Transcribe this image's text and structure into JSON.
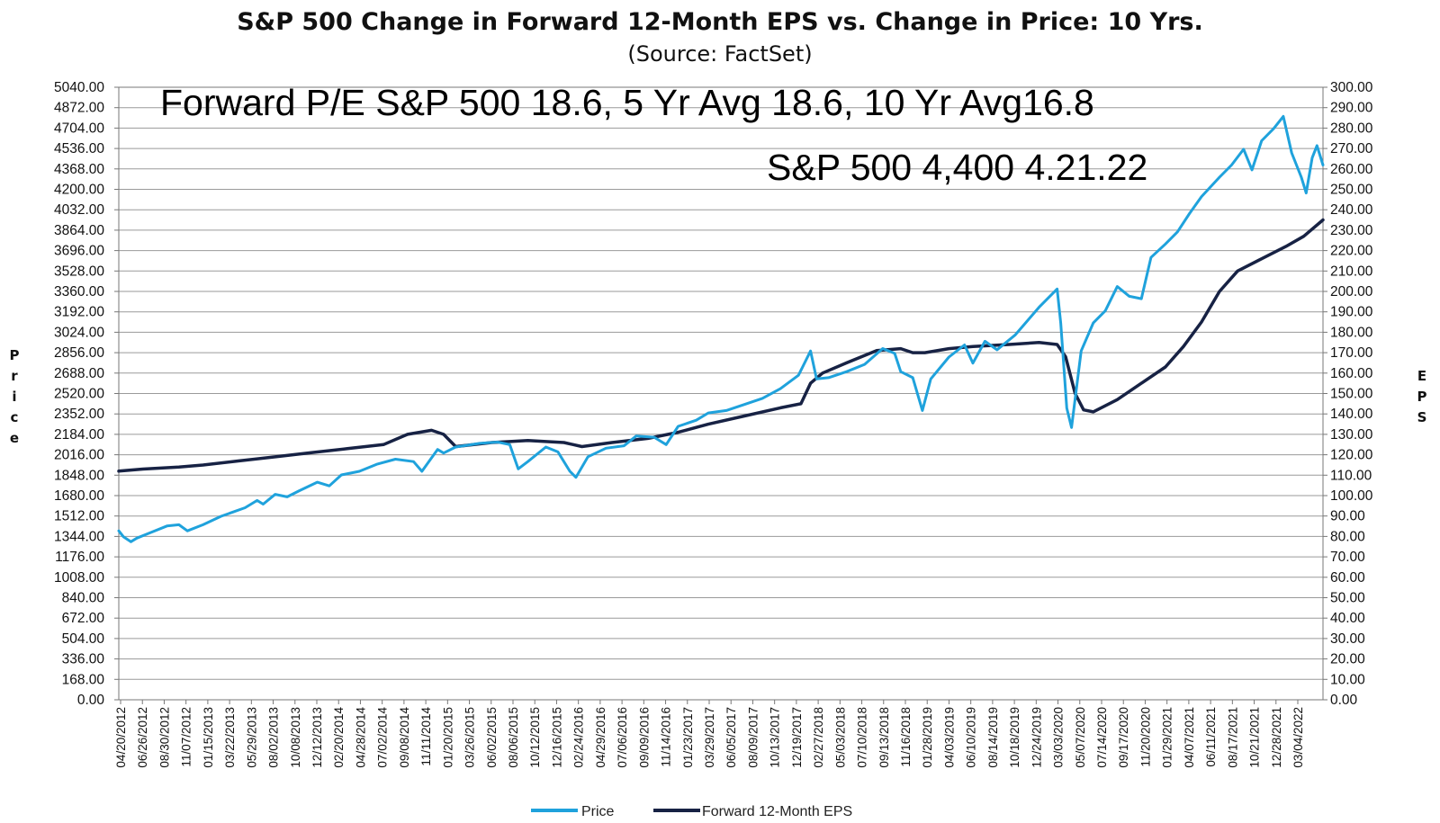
{
  "chart_data": {
    "type": "line",
    "title": "S&P 500 Change in Forward 12-Month EPS vs. Change in Price: 10 Yrs.",
    "subtitle": "(Source: FactSet)",
    "ylabel_left": "Price",
    "ylabel_right": "EPS",
    "ylim_left": [
      0,
      5040
    ],
    "ylim_right": [
      0,
      300
    ],
    "left_ticks": [
      "0.00",
      "168.00",
      "336.00",
      "504.00",
      "672.00",
      "840.00",
      "1008.00",
      "1176.00",
      "1344.00",
      "1512.00",
      "1680.00",
      "1848.00",
      "2016.00",
      "2184.00",
      "2352.00",
      "2520.00",
      "2688.00",
      "2856.00",
      "3024.00",
      "3192.00",
      "3360.00",
      "3528.00",
      "3696.00",
      "3864.00",
      "4032.00",
      "4200.00",
      "4368.00",
      "4536.00",
      "4704.00",
      "4872.00",
      "5040.00"
    ],
    "right_ticks": [
      "0.00",
      "10.00",
      "20.00",
      "30.00",
      "40.00",
      "50.00",
      "60.00",
      "70.00",
      "80.00",
      "90.00",
      "100.00",
      "110.00",
      "120.00",
      "130.00",
      "140.00",
      "150.00",
      "160.00",
      "170.00",
      "180.00",
      "190.00",
      "200.00",
      "210.00",
      "220.00",
      "230.00",
      "240.00",
      "250.00",
      "260.00",
      "270.00",
      "280.00",
      "290.00",
      "300.00"
    ],
    "x_labels": [
      "04/20/2012",
      "06/26/2012",
      "08/30/2012",
      "11/07/2012",
      "01/15/2013",
      "03/22/2013",
      "05/29/2013",
      "08/02/2013",
      "10/08/2013",
      "12/12/2013",
      "02/20/2014",
      "04/28/2014",
      "07/02/2014",
      "09/08/2014",
      "11/11/2014",
      "01/20/2015",
      "03/26/2015",
      "06/02/2015",
      "08/06/2015",
      "10/12/2015",
      "12/16/2015",
      "02/24/2016",
      "04/29/2016",
      "07/06/2016",
      "09/09/2016",
      "11/14/2016",
      "01/23/2017",
      "03/29/2017",
      "06/05/2017",
      "08/09/2017",
      "10/13/2017",
      "12/19/2017",
      "02/27/2018",
      "05/03/2018",
      "07/10/2018",
      "09/13/2018",
      "11/16/2018",
      "01/28/2019",
      "04/03/2019",
      "06/10/2019",
      "08/14/2019",
      "10/18/2019",
      "12/24/2019",
      "03/03/2020",
      "05/07/2020",
      "07/14/2020",
      "09/17/2020",
      "11/20/2020",
      "01/29/2021",
      "04/07/2021",
      "06/11/2021",
      "08/17/2021",
      "10/21/2021",
      "12/28/2021",
      "03/04/2022"
    ],
    "x_range": [
      2012.3,
      2022.31
    ],
    "series": [
      {
        "name": "Price",
        "axis": "left",
        "color": "#1fa2dc",
        "points": [
          [
            2012.3,
            1390
          ],
          [
            2012.34,
            1340
          ],
          [
            2012.4,
            1300
          ],
          [
            2012.45,
            1330
          ],
          [
            2012.55,
            1370
          ],
          [
            2012.7,
            1430
          ],
          [
            2012.8,
            1440
          ],
          [
            2012.87,
            1390
          ],
          [
            2013.0,
            1440
          ],
          [
            2013.15,
            1510
          ],
          [
            2013.35,
            1580
          ],
          [
            2013.45,
            1640
          ],
          [
            2013.5,
            1610
          ],
          [
            2013.6,
            1690
          ],
          [
            2013.7,
            1670
          ],
          [
            2013.8,
            1720
          ],
          [
            2013.95,
            1790
          ],
          [
            2014.05,
            1760
          ],
          [
            2014.15,
            1850
          ],
          [
            2014.3,
            1880
          ],
          [
            2014.45,
            1940
          ],
          [
            2014.6,
            1980
          ],
          [
            2014.75,
            1960
          ],
          [
            2014.82,
            1880
          ],
          [
            2014.95,
            2060
          ],
          [
            2015.0,
            2030
          ],
          [
            2015.1,
            2080
          ],
          [
            2015.3,
            2110
          ],
          [
            2015.45,
            2120
          ],
          [
            2015.55,
            2100
          ],
          [
            2015.62,
            1900
          ],
          [
            2015.7,
            1960
          ],
          [
            2015.85,
            2080
          ],
          [
            2015.95,
            2040
          ],
          [
            2016.05,
            1880
          ],
          [
            2016.1,
            1830
          ],
          [
            2016.2,
            2000
          ],
          [
            2016.35,
            2070
          ],
          [
            2016.5,
            2090
          ],
          [
            2016.6,
            2170
          ],
          [
            2016.75,
            2160
          ],
          [
            2016.85,
            2100
          ],
          [
            2016.95,
            2250
          ],
          [
            2017.1,
            2300
          ],
          [
            2017.2,
            2360
          ],
          [
            2017.35,
            2380
          ],
          [
            2017.5,
            2430
          ],
          [
            2017.65,
            2480
          ],
          [
            2017.8,
            2560
          ],
          [
            2017.95,
            2670
          ],
          [
            2018.05,
            2870
          ],
          [
            2018.1,
            2640
          ],
          [
            2018.2,
            2650
          ],
          [
            2018.35,
            2700
          ],
          [
            2018.5,
            2760
          ],
          [
            2018.65,
            2890
          ],
          [
            2018.75,
            2850
          ],
          [
            2018.8,
            2700
          ],
          [
            2018.9,
            2650
          ],
          [
            2018.98,
            2380
          ],
          [
            2019.05,
            2640
          ],
          [
            2019.2,
            2820
          ],
          [
            2019.33,
            2920
          ],
          [
            2019.4,
            2770
          ],
          [
            2019.5,
            2950
          ],
          [
            2019.6,
            2880
          ],
          [
            2019.75,
            3000
          ],
          [
            2019.95,
            3230
          ],
          [
            2020.1,
            3380
          ],
          [
            2020.13,
            3100
          ],
          [
            2020.18,
            2400
          ],
          [
            2020.22,
            2240
          ],
          [
            2020.3,
            2870
          ],
          [
            2020.4,
            3100
          ],
          [
            2020.5,
            3200
          ],
          [
            2020.6,
            3400
          ],
          [
            2020.7,
            3320
          ],
          [
            2020.8,
            3300
          ],
          [
            2020.88,
            3640
          ],
          [
            2021.0,
            3750
          ],
          [
            2021.1,
            3850
          ],
          [
            2021.2,
            4000
          ],
          [
            2021.3,
            4140
          ],
          [
            2021.45,
            4300
          ],
          [
            2021.55,
            4400
          ],
          [
            2021.65,
            4530
          ],
          [
            2021.72,
            4360
          ],
          [
            2021.8,
            4600
          ],
          [
            2021.9,
            4700
          ],
          [
            2021.98,
            4800
          ],
          [
            2022.05,
            4500
          ],
          [
            2022.13,
            4300
          ],
          [
            2022.17,
            4170
          ],
          [
            2022.22,
            4460
          ],
          [
            2022.26,
            4560
          ],
          [
            2022.31,
            4400
          ]
        ]
      },
      {
        "name": "Forward 12-Month EPS",
        "axis": "right",
        "color": "#172244",
        "points": [
          [
            2012.3,
            112
          ],
          [
            2012.5,
            113
          ],
          [
            2012.8,
            114
          ],
          [
            2013.0,
            115
          ],
          [
            2013.3,
            117
          ],
          [
            2013.6,
            119
          ],
          [
            2013.9,
            121
          ],
          [
            2014.2,
            123
          ],
          [
            2014.5,
            125
          ],
          [
            2014.7,
            130
          ],
          [
            2014.9,
            132
          ],
          [
            2015.0,
            130
          ],
          [
            2015.1,
            124
          ],
          [
            2015.4,
            126
          ],
          [
            2015.7,
            127
          ],
          [
            2016.0,
            126
          ],
          [
            2016.15,
            124
          ],
          [
            2016.4,
            126
          ],
          [
            2016.7,
            128
          ],
          [
            2016.95,
            131
          ],
          [
            2017.2,
            135
          ],
          [
            2017.5,
            139
          ],
          [
            2017.8,
            143
          ],
          [
            2017.97,
            145
          ],
          [
            2018.05,
            155
          ],
          [
            2018.15,
            160
          ],
          [
            2018.35,
            165
          ],
          [
            2018.6,
            171
          ],
          [
            2018.8,
            172
          ],
          [
            2018.9,
            170
          ],
          [
            2019.0,
            170
          ],
          [
            2019.2,
            172
          ],
          [
            2019.4,
            173
          ],
          [
            2019.7,
            174
          ],
          [
            2019.95,
            175
          ],
          [
            2020.1,
            174
          ],
          [
            2020.17,
            168
          ],
          [
            2020.25,
            150
          ],
          [
            2020.32,
            142
          ],
          [
            2020.4,
            141
          ],
          [
            2020.6,
            147
          ],
          [
            2020.8,
            155
          ],
          [
            2021.0,
            163
          ],
          [
            2021.15,
            173
          ],
          [
            2021.3,
            185
          ],
          [
            2021.45,
            200
          ],
          [
            2021.6,
            210
          ],
          [
            2021.8,
            216
          ],
          [
            2022.0,
            222
          ],
          [
            2022.15,
            227
          ],
          [
            2022.31,
            235
          ]
        ]
      }
    ],
    "annotations": [
      "Forward P/E S&P 500 18.6, 5 Yr Avg 18.6, 10 Yr Avg16.8",
      "S&P 500 4,400 4.21.22"
    ],
    "legend_position": "bottom-center",
    "grid": true
  }
}
